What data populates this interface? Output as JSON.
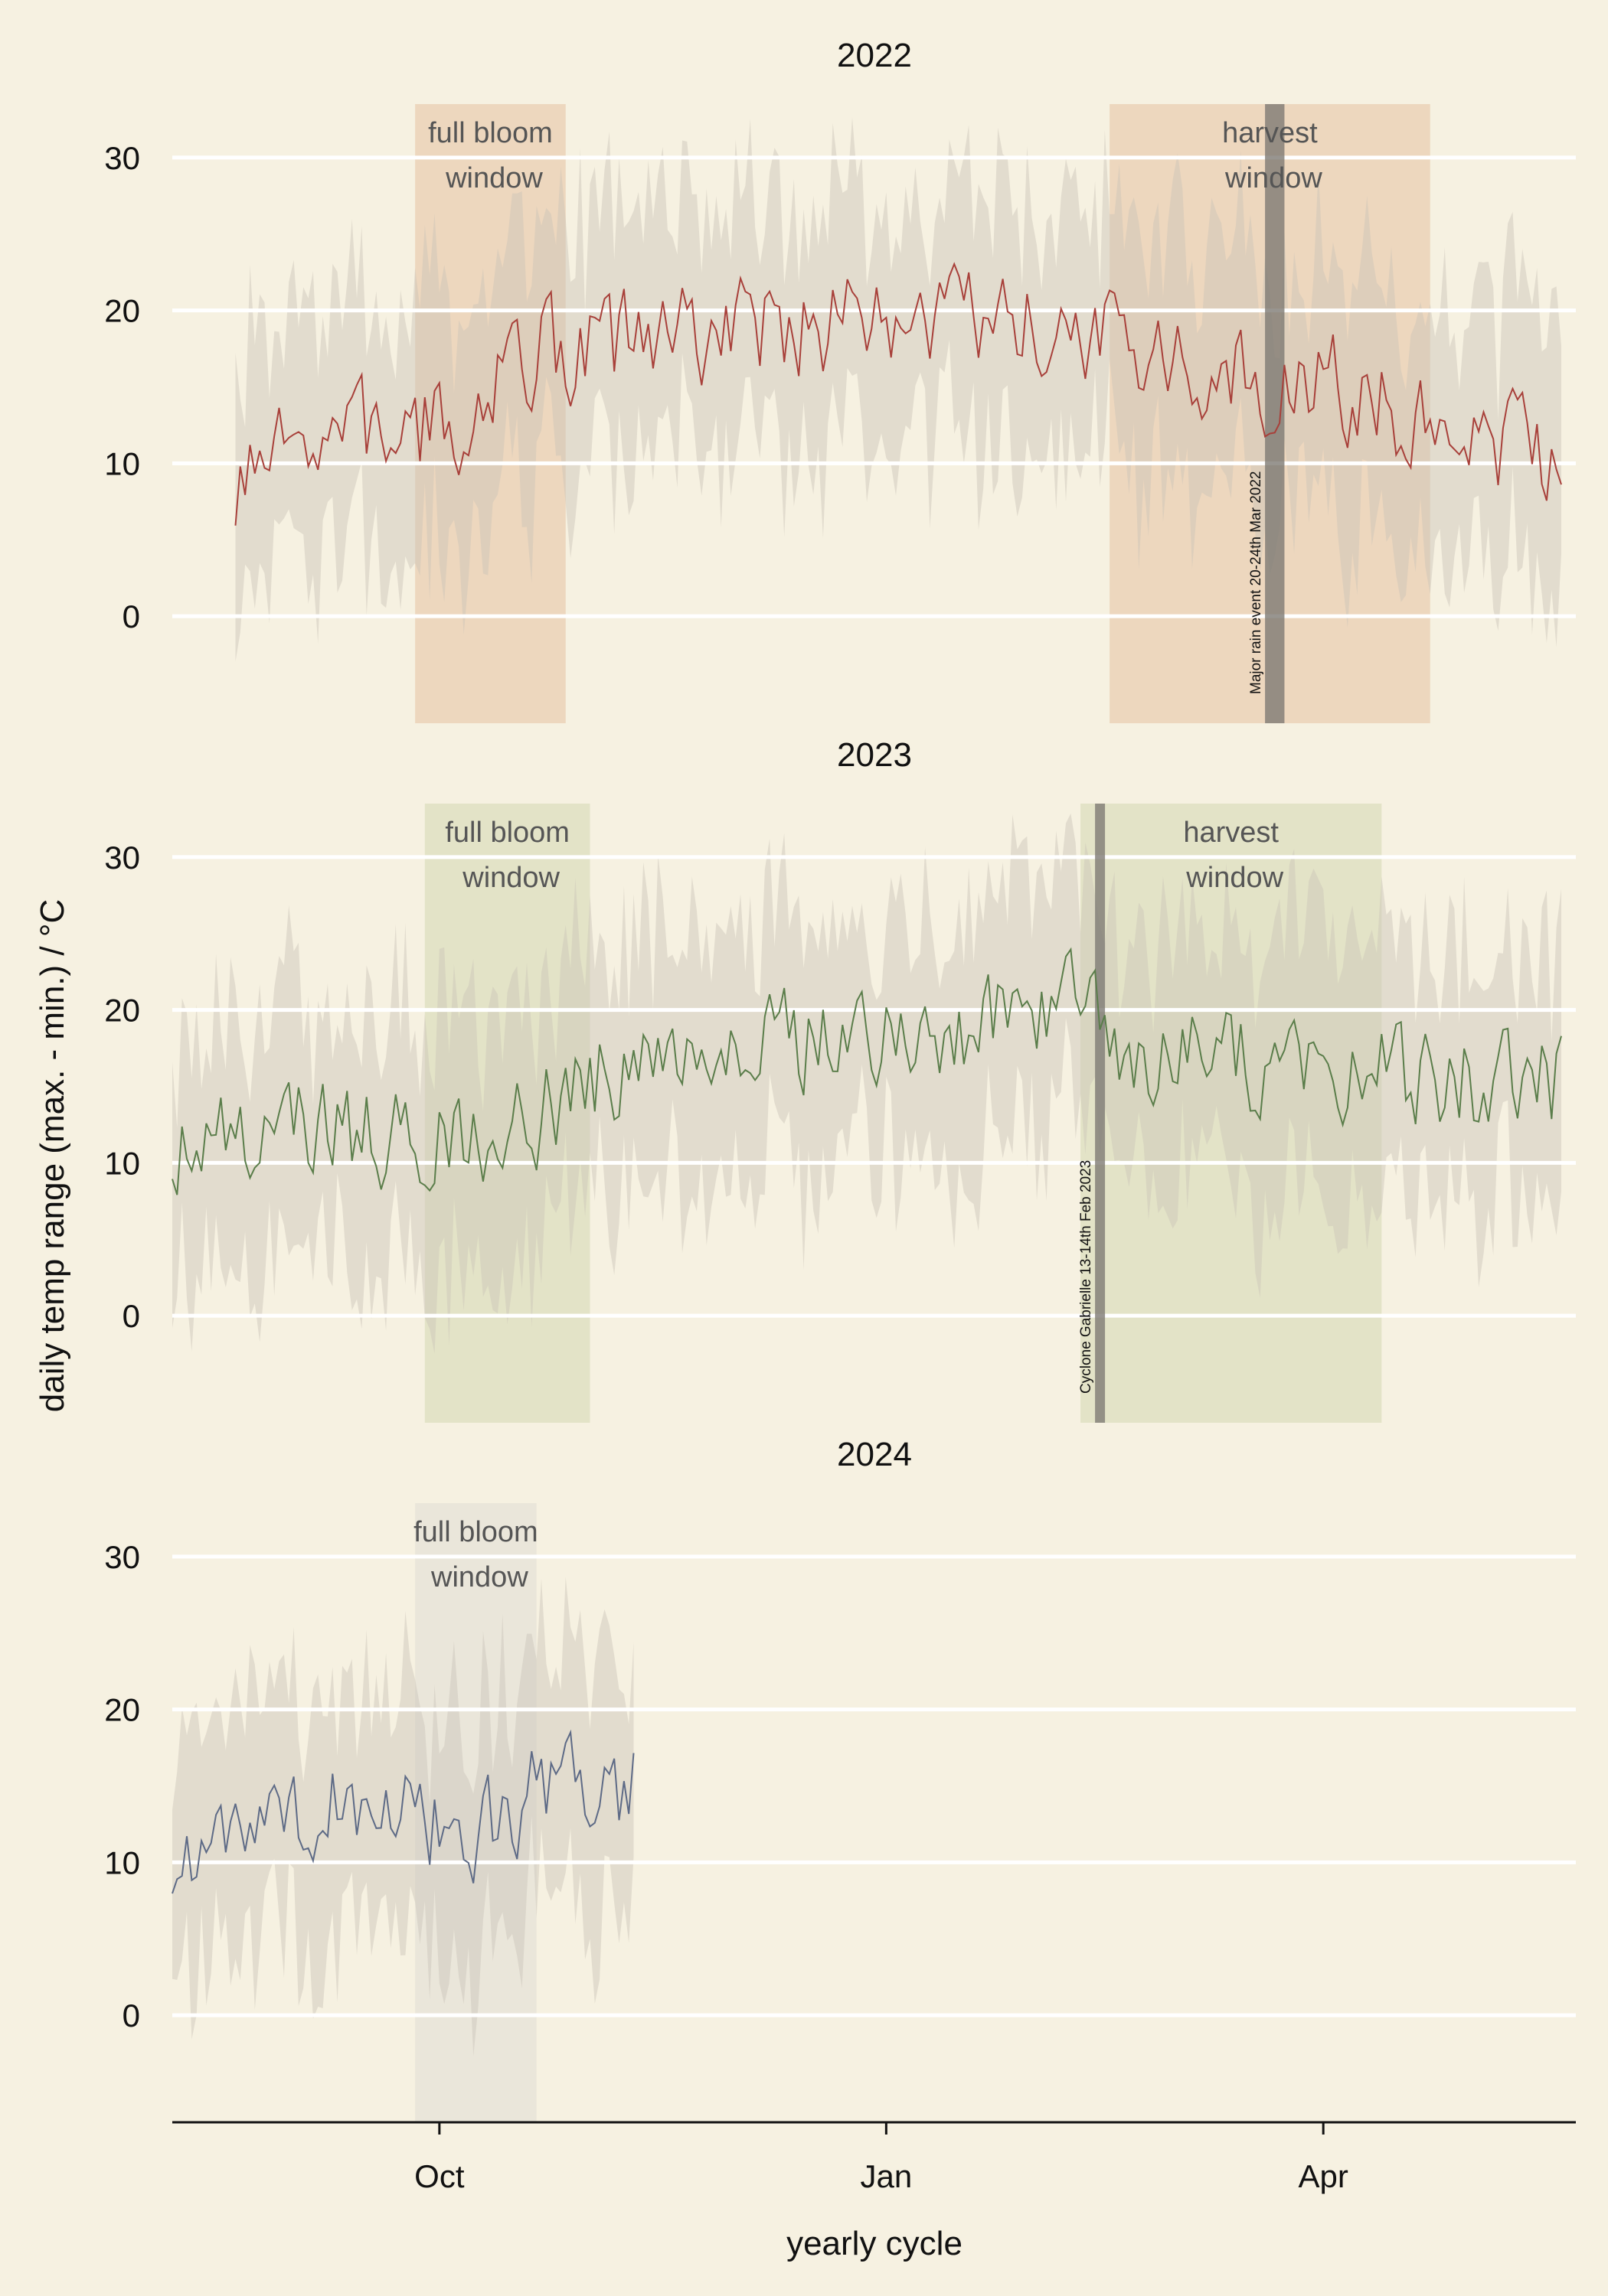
{
  "chart_data": {
    "type": "line",
    "xlabel": "yearly cycle",
    "ylabel": "daily temp range (max. - min.) / °C",
    "xlim": [
      "2022-08-07",
      "2023-05-23"
    ],
    "ylim": [
      -7,
      33.5
    ],
    "x_ticks": [
      {
        "date": "2022-10-01",
        "label": "Oct"
      },
      {
        "date": "2023-01-01",
        "label": "Jan"
      },
      {
        "date": "2023-04-01",
        "label": "Apr"
      }
    ],
    "y_ticks": [
      0,
      10,
      20,
      30
    ],
    "grid": "horizontal",
    "panels": [
      {
        "title": "2022",
        "line_color": "#a8403a",
        "window_color": "#e8c9aa",
        "line_start": "2021-08-20",
        "line_end": "2022-05-20",
        "line_seed": 7,
        "windows": [
          {
            "label_top": "full bloom",
            "label_bottom": "window",
            "start": "2021-09-26",
            "end": "2021-10-27"
          },
          {
            "label_top": "harvest",
            "label_bottom": "window",
            "start": "2022-02-16",
            "end": "2022-04-23"
          }
        ],
        "events": [
          {
            "label": "Major rain event 20-24th Mar 2022",
            "start": "2022-03-20",
            "end": "2022-03-24"
          }
        ],
        "line_anchors": [
          {
            "date": "2021-08-20",
            "value": 7.5
          },
          {
            "date": "2021-09-05",
            "value": 12
          },
          {
            "date": "2021-10-05",
            "value": 12
          },
          {
            "date": "2021-10-15",
            "value": 17
          },
          {
            "date": "2021-11-10",
            "value": 18
          },
          {
            "date": "2021-12-10",
            "value": 19
          },
          {
            "date": "2022-01-10",
            "value": 19
          },
          {
            "date": "2022-02-10",
            "value": 18.5
          },
          {
            "date": "2022-03-10",
            "value": 15.5
          },
          {
            "date": "2022-04-05",
            "value": 15
          },
          {
            "date": "2022-04-25",
            "value": 12
          },
          {
            "date": "2022-05-20",
            "value": 11
          }
        ]
      },
      {
        "title": "2023",
        "line_color": "#5a7d4a",
        "window_color": "#d9dcb8",
        "line_start": "2022-08-07",
        "line_end": "2023-05-20",
        "line_seed": 13,
        "windows": [
          {
            "label_top": "full bloom",
            "label_bottom": "window",
            "start": "2022-09-28",
            "end": "2022-11-01"
          },
          {
            "label_top": "harvest",
            "label_bottom": "window",
            "start": "2023-02-10",
            "end": "2023-04-13"
          }
        ],
        "events": [
          {
            "label": "Cyclone Gabrielle 13-14th Feb 2023",
            "start": "2023-02-13",
            "end": "2023-02-14"
          }
        ],
        "line_anchors": [
          {
            "date": "2022-08-07",
            "value": 10.5
          },
          {
            "date": "2022-09-01",
            "value": 12
          },
          {
            "date": "2022-10-15",
            "value": 12
          },
          {
            "date": "2022-11-10",
            "value": 17
          },
          {
            "date": "2022-12-10",
            "value": 18
          },
          {
            "date": "2023-01-10",
            "value": 18
          },
          {
            "date": "2023-02-05",
            "value": 21
          },
          {
            "date": "2023-02-20",
            "value": 17
          },
          {
            "date": "2023-03-20",
            "value": 16.5
          },
          {
            "date": "2023-04-20",
            "value": 15.5
          },
          {
            "date": "2023-05-20",
            "value": 15
          }
        ]
      },
      {
        "title": "2024",
        "line_color": "#5d6a86",
        "window_color": "#e3e1d6",
        "line_start": "2023-08-07",
        "line_end": "2023-11-10",
        "line_seed": 21,
        "windows": [
          {
            "label_top": "full bloom",
            "label_bottom": "window",
            "start": "2023-09-26",
            "end": "2023-10-21"
          }
        ],
        "events": [],
        "line_anchors": [
          {
            "date": "2023-08-07",
            "value": 9.5
          },
          {
            "date": "2023-08-20",
            "value": 13
          },
          {
            "date": "2023-09-15",
            "value": 14
          },
          {
            "date": "2023-10-05",
            "value": 12
          },
          {
            "date": "2023-10-25",
            "value": 15
          },
          {
            "date": "2023-11-10",
            "value": 15
          }
        ]
      }
    ]
  }
}
